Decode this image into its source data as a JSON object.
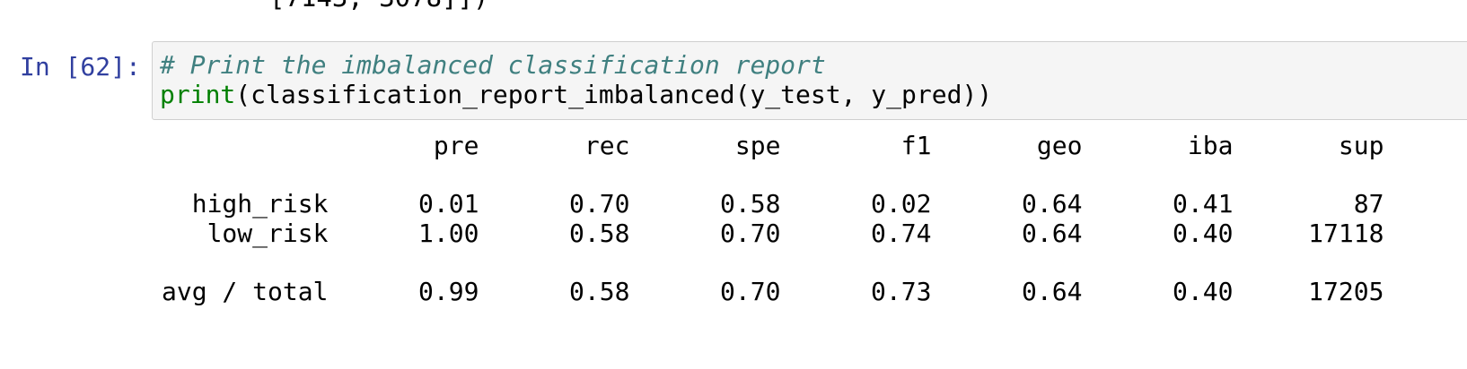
{
  "previous_output": {
    "text": "[7143, 3078]])"
  },
  "cell": {
    "prompt": "In [62]:",
    "code": {
      "line1_comment": "# Print the imbalanced classification report",
      "line2_builtin": "print",
      "line2_rest": "(classification_report_imbalanced(y_test, y_pred))"
    }
  },
  "report": {
    "headers": [
      "pre",
      "rec",
      "spe",
      "f1",
      "geo",
      "iba",
      "sup"
    ],
    "rows": [
      {
        "label": "high_risk",
        "values": [
          "0.01",
          "0.70",
          "0.58",
          "0.02",
          "0.64",
          "0.41",
          "87"
        ]
      },
      {
        "label": "low_risk",
        "values": [
          "1.00",
          "0.58",
          "0.70",
          "0.74",
          "0.64",
          "0.40",
          "17118"
        ]
      }
    ],
    "total": {
      "label": "avg / total",
      "values": [
        "0.99",
        "0.58",
        "0.70",
        "0.73",
        "0.64",
        "0.40",
        "17205"
      ]
    }
  },
  "colors": {
    "prompt": "#303f9f",
    "comment": "#408080",
    "builtin": "#008000",
    "input_bg": "#f5f5f5",
    "input_border": "#cfcfcf"
  }
}
